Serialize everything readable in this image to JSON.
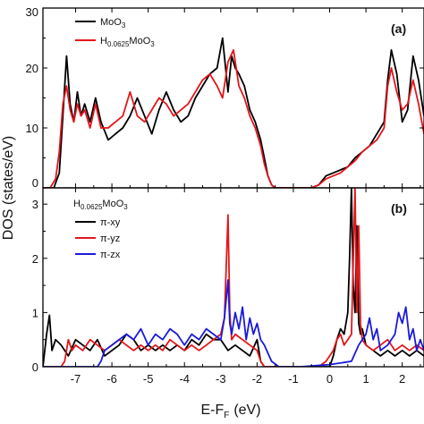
{
  "figure": {
    "ylabel": "DOS (states/eV)",
    "xlabel": "E-F",
    "xlabel_sub": "F",
    "xlabel_unit": "(eV)"
  },
  "chart_data": [
    {
      "type": "line",
      "panel_label": "(a)",
      "title": "",
      "xlabel": "E-FF (eV)",
      "ylabel": "DOS (states/eV)",
      "xlim": [
        -7.9,
        2.6
      ],
      "ylim": [
        0,
        30
      ],
      "yticks": [
        "0",
        "10",
        "20",
        "30"
      ],
      "legend_placement": "top-left",
      "series": [
        {
          "name": "MoO3",
          "legend_base": "MoO",
          "legend_sub": "3",
          "legend_tail": "",
          "color": "#000000",
          "x": [
            -7.9,
            -7.6,
            -7.45,
            -7.35,
            -7.25,
            -7.15,
            -7.05,
            -6.95,
            -6.85,
            -6.75,
            -6.6,
            -6.45,
            -6.3,
            -6.1,
            -5.9,
            -5.7,
            -5.5,
            -5.3,
            -5.1,
            -4.9,
            -4.7,
            -4.5,
            -4.3,
            -4.1,
            -3.9,
            -3.7,
            -3.5,
            -3.3,
            -3.1,
            -2.95,
            -2.8,
            -2.7,
            -2.6,
            -2.5,
            -2.35,
            -2.2,
            -2.05,
            -1.9,
            -1.8,
            -1.7,
            -1.6,
            -1.5,
            -0.5,
            -0.3,
            -0.1,
            0.1,
            0.3,
            0.5,
            0.7,
            0.9,
            1.1,
            1.3,
            1.5,
            1.6,
            1.7,
            1.85,
            2.0,
            2.15,
            2.3,
            2.45,
            2.6
          ],
          "values": [
            0,
            0,
            2.5,
            12,
            22,
            14,
            11,
            16,
            12,
            14,
            11,
            15,
            11,
            8,
            9,
            10,
            12,
            15,
            12,
            9,
            13,
            16,
            13,
            11,
            12,
            15,
            17,
            19,
            20,
            25,
            16,
            22,
            20,
            19,
            17,
            13,
            11,
            8,
            5,
            2,
            0.5,
            0,
            0,
            0.5,
            2,
            2.5,
            3,
            3.5,
            5,
            6,
            7,
            9,
            11,
            18,
            23,
            19,
            11,
            13,
            22,
            18,
            12
          ]
        },
        {
          "name": "H0.0625MoO3",
          "legend_base": "H",
          "legend_sub": "0.0625",
          "legend_tail": "MoO",
          "legend_sub2": "3",
          "color": "#e3161b",
          "x": [
            -7.9,
            -7.7,
            -7.55,
            -7.45,
            -7.35,
            -7.25,
            -7.15,
            -7.05,
            -6.95,
            -6.85,
            -6.75,
            -6.6,
            -6.45,
            -6.3,
            -6.1,
            -5.9,
            -5.7,
            -5.5,
            -5.3,
            -5.1,
            -4.9,
            -4.7,
            -4.5,
            -4.3,
            -4.1,
            -3.9,
            -3.7,
            -3.5,
            -3.3,
            -3.1,
            -2.95,
            -2.8,
            -2.65,
            -2.5,
            -2.35,
            -2.2,
            -2.05,
            -1.9,
            -1.8,
            -1.7,
            -1.6,
            -1.5,
            -0.5,
            -0.3,
            -0.1,
            0.1,
            0.3,
            0.5,
            0.7,
            0.9,
            1.1,
            1.3,
            1.5,
            1.6,
            1.7,
            1.85,
            2.0,
            2.15,
            2.3,
            2.45,
            2.6
          ],
          "values": [
            0,
            0,
            1.5,
            6,
            14,
            17,
            13,
            11,
            14,
            12,
            13,
            10,
            14,
            10,
            10,
            11,
            12,
            16,
            12,
            11,
            13,
            15,
            14,
            12,
            13,
            14,
            16,
            18,
            19,
            17,
            15,
            21,
            23,
            17,
            15,
            12,
            10,
            7,
            4,
            2,
            0.5,
            0,
            0,
            0.5,
            1.5,
            2,
            2.5,
            3.5,
            4.5,
            6,
            7,
            8,
            10,
            17,
            20,
            16,
            13,
            14,
            18,
            14,
            9
          ]
        }
      ]
    },
    {
      "type": "line",
      "panel_label": "(b)",
      "title": "",
      "xlabel": "E-FF (eV)",
      "ylabel": "DOS (states/eV)",
      "xlim": [
        -7.9,
        2.6
      ],
      "ylim": [
        0,
        3.3
      ],
      "yticks": [
        "0",
        "1",
        "2",
        "3"
      ],
      "xticks": [
        "-7",
        "-6",
        "-5",
        "-4",
        "-3",
        "-2",
        "-1",
        "0",
        "1",
        "2"
      ],
      "legend_placement": "top-left",
      "legend_title_base": "H",
      "legend_title_sub": "0.0625",
      "legend_title_tail": "MoO",
      "legend_title_sub2": "3",
      "series": [
        {
          "name": "π-xy",
          "color": "#000000",
          "x": [
            -7.9,
            -7.8,
            -7.72,
            -7.65,
            -7.55,
            -7.4,
            -7.2,
            -7.0,
            -6.8,
            -6.6,
            -6.4,
            -6.2,
            -6.0,
            -5.8,
            -5.6,
            -5.4,
            -5.2,
            -5.0,
            -4.8,
            -4.6,
            -4.4,
            -4.2,
            -4.0,
            -3.8,
            -3.6,
            -3.4,
            -3.2,
            -3.0,
            -2.8,
            -2.6,
            -2.4,
            -2.2,
            -2.0,
            -1.9,
            -1.8,
            -1.6,
            -1.4,
            -1.2,
            -1.0,
            -0.8,
            -0.6,
            -0.4,
            -0.2,
            0.0,
            0.1,
            0.2,
            0.3,
            0.4,
            0.5,
            0.55,
            0.6,
            0.65,
            0.7,
            0.75,
            0.8,
            0.85,
            0.9,
            1.0,
            1.2,
            1.4,
            1.6,
            1.8,
            2.0,
            2.2,
            2.4,
            2.6
          ],
          "values": [
            0,
            0.6,
            0.95,
            0.3,
            0.5,
            0.4,
            0.2,
            0.5,
            0.4,
            0.3,
            0.5,
            0.2,
            0.3,
            0.4,
            0.6,
            0.5,
            0.3,
            0.4,
            0.3,
            0.4,
            0.3,
            0.4,
            0.3,
            0.5,
            0.4,
            0.6,
            0.5,
            0.5,
            0.3,
            0.4,
            0.3,
            0.2,
            0.5,
            0.1,
            0,
            0,
            0,
            0,
            0,
            0,
            0,
            0,
            0,
            0,
            0.2,
            0.5,
            0.7,
            0.6,
            1.0,
            2.0,
            3.3,
            1.5,
            1.0,
            2.6,
            0.8,
            0.6,
            0.7,
            0.4,
            0.3,
            0.2,
            0.3,
            0.2,
            0.3,
            0.2,
            0.3,
            0.2
          ]
        },
        {
          "name": "π-yz",
          "color": "#e3161b",
          "x": [
            -7.9,
            -7.4,
            -7.3,
            -7.2,
            -7.1,
            -7.0,
            -6.8,
            -6.6,
            -6.4,
            -6.2,
            -6.0,
            -5.8,
            -5.6,
            -5.4,
            -5.2,
            -5.0,
            -4.8,
            -4.6,
            -4.4,
            -4.2,
            -4.0,
            -3.8,
            -3.6,
            -3.4,
            -3.2,
            -3.0,
            -2.9,
            -2.8,
            -2.75,
            -2.7,
            -2.6,
            -2.4,
            -2.2,
            -2.0,
            -1.9,
            -1.8,
            -0.3,
            -0.1,
            0.1,
            0.2,
            0.3,
            0.4,
            0.5,
            0.6,
            0.7,
            0.75,
            0.8,
            0.85,
            0.9,
            1.0,
            1.2,
            1.4,
            1.6,
            1.8,
            2.0,
            2.2,
            2.4,
            2.6
          ],
          "values": [
            0,
            0,
            0.1,
            0.5,
            0.3,
            0.4,
            0.3,
            0.5,
            0.4,
            0.3,
            0.4,
            0.5,
            0.4,
            0.3,
            0.4,
            0.3,
            0.4,
            0.3,
            0.5,
            0.4,
            0.3,
            0.4,
            0.3,
            0.4,
            0.5,
            0.6,
            0.9,
            2.8,
            1.0,
            0.5,
            0.6,
            0.5,
            0.4,
            0.3,
            0.1,
            0,
            0,
            0.1,
            0.3,
            0.5,
            0.6,
            0.4,
            0.5,
            0.6,
            3.3,
            1.0,
            2.6,
            0.8,
            0.5,
            0.4,
            0.3,
            0.4,
            0.5,
            0.3,
            0.4,
            0.3,
            0.4,
            0.3
          ]
        },
        {
          "name": "π-zx",
          "color": "#1a1adb",
          "x": [
            -7.9,
            -6.4,
            -6.3,
            -6.2,
            -6.0,
            -5.8,
            -5.6,
            -5.4,
            -5.2,
            -5.0,
            -4.8,
            -4.6,
            -4.4,
            -4.2,
            -4.0,
            -3.8,
            -3.6,
            -3.4,
            -3.2,
            -3.0,
            -2.9,
            -2.8,
            -2.75,
            -2.7,
            -2.6,
            -2.5,
            -2.4,
            -2.3,
            -2.2,
            -2.1,
            -2.0,
            -1.9,
            -1.8,
            -1.6,
            -1.4,
            -0.8,
            -0.6,
            -0.4,
            -0.2,
            0.0,
            0.2,
            0.4,
            0.6,
            0.8,
            1.0,
            1.1,
            1.2,
            1.3,
            1.4,
            1.6,
            1.8,
            1.9,
            2.0,
            2.1,
            2.2,
            2.3,
            2.4,
            2.5,
            2.6
          ],
          "values": [
            0,
            0,
            0.1,
            0.3,
            0.4,
            0.5,
            0.6,
            0.5,
            0.7,
            0.4,
            0.6,
            0.5,
            0.7,
            0.6,
            0.4,
            0.6,
            0.5,
            0.7,
            0.6,
            0.5,
            0.9,
            1.6,
            0.8,
            0.6,
            1.0,
            0.7,
            1.1,
            0.5,
            0.9,
            0.6,
            0.8,
            0.5,
            0.4,
            0.1,
            0,
            0,
            0.01,
            0.02,
            0.03,
            0.04,
            0.06,
            0.08,
            0.1,
            0.4,
            0.6,
            0.9,
            0.5,
            0.7,
            0.3,
            0.4,
            0.6,
            1.0,
            0.8,
            1.1,
            0.5,
            0.7,
            0.3,
            0.5,
            0.3
          ]
        }
      ]
    }
  ]
}
